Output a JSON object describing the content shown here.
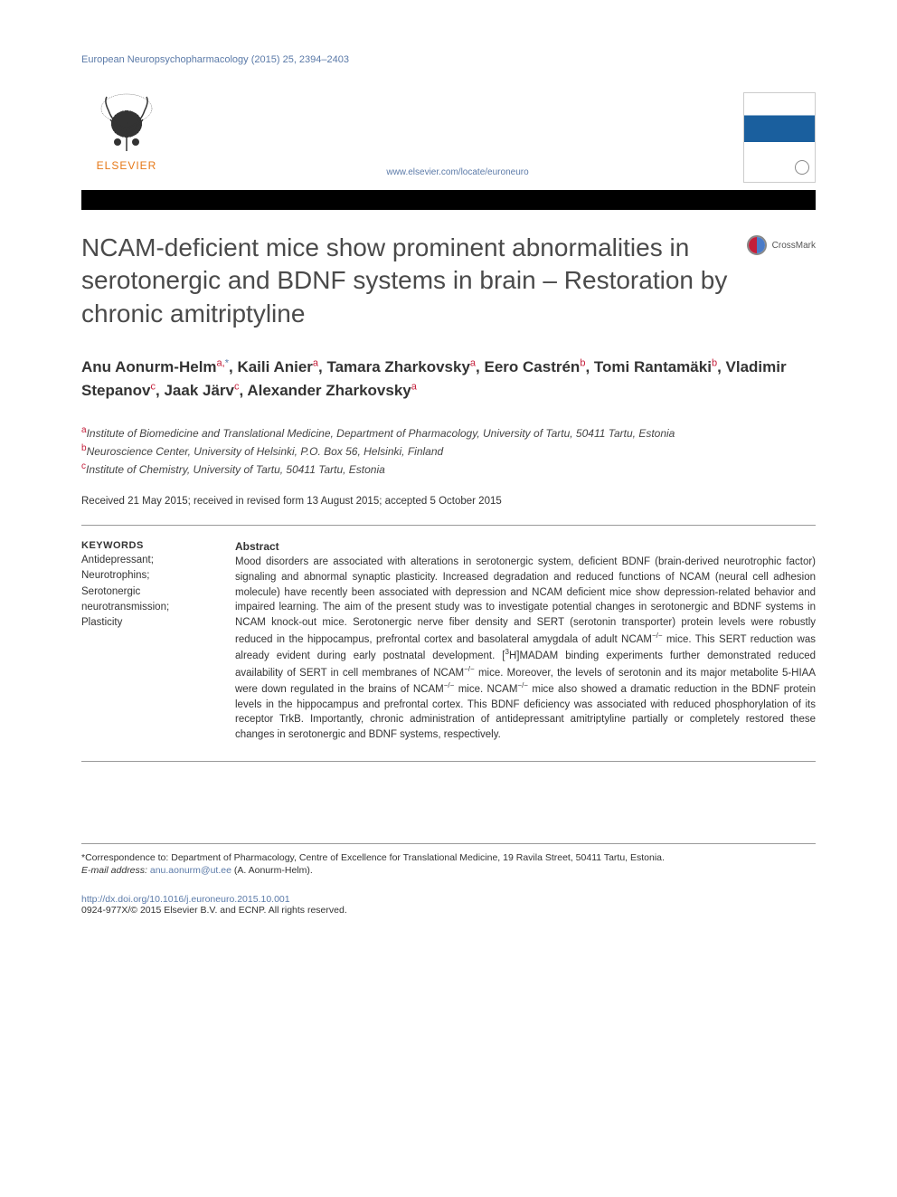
{
  "journal_ref": "European Neuropsychopharmacology (2015) 25, 2394–2403",
  "publisher_name": "ELSEVIER",
  "journal_url": "www.elsevier.com/locate/euroneuro",
  "crossmark_label": "CrossMark",
  "title": "NCAM-deficient mice show prominent abnormalities in serotonergic and BDNF systems in brain – Restoration by chronic amitriptyline",
  "authors_html": "Anu Aonurm-Helm<sup>a,</sup><sup class=\"star\">*</sup>, Kaili Anier<sup>a</sup>, Tamara Zharkovsky<sup>a</sup>, Eero Castrén<sup>b</sup>, Tomi Rantamäki<sup>b</sup>, Vladimir Stepanov<sup>c</sup>, Jaak Järv<sup>c</sup>, Alexander Zharkovsky<sup>a</sup>",
  "affiliations": [
    {
      "label": "a",
      "text": "Institute of Biomedicine and Translational Medicine, Department of Pharmacology, University of Tartu, 50411 Tartu, Estonia"
    },
    {
      "label": "b",
      "text": "Neuroscience Center, University of Helsinki, P.O. Box 56, Helsinki, Finland"
    },
    {
      "label": "c",
      "text": "Institute of Chemistry, University of Tartu, 50411 Tartu, Estonia"
    }
  ],
  "dates": "Received 21 May 2015; received in revised form 13 August 2015; accepted 5 October 2015",
  "keywords_heading": "KEYWORDS",
  "keywords": "Antidepressant;\nNeurotrophins;\nSerotonergic neurotransmission;\nPlasticity",
  "abstract_heading": "Abstract",
  "abstract_text": "Mood disorders are associated with alterations in serotonergic system, deficient BDNF (brain-derived neurotrophic factor) signaling and abnormal synaptic plasticity. Increased degradation and reduced functions of NCAM (neural cell adhesion molecule) have recently been associated with depression and NCAM deficient mice show depression-related behavior and impaired learning. The aim of the present study was to investigate potential changes in serotonergic and BDNF systems in NCAM knock-out mice. Serotonergic nerve fiber density and SERT (serotonin transporter) protein levels were robustly reduced in the hippocampus, prefrontal cortex and basolateral amygdala of adult NCAM⁻/⁻ mice. This SERT reduction was already evident during early postnatal development. [³H]MADAM binding experiments further demonstrated reduced availability of SERT in cell membranes of NCAM⁻/⁻ mice. Moreover, the levels of serotonin and its major metabolite 5-HIAA were down regulated in the brains of NCAM⁻/⁻ mice. NCAM⁻/⁻ mice also showed a dramatic reduction in the BDNF protein levels in the hippocampus and prefrontal cortex. This BDNF deficiency was associated with reduced phosphorylation of its receptor TrkB. Importantly, chronic administration of antidepressant amitriptyline partially or completely restored these changes in serotonergic and BDNF systems, respectively.",
  "correspondence_label": "*Correspondence to:",
  "correspondence_text": "Department of Pharmacology, Centre of Excellence for Translational Medicine, 19 Ravila Street, 50411 Tartu, Estonia.",
  "email_label": "E-mail address:",
  "email": "anu.aonurm@ut.ee",
  "email_author": "(A. Aonurm-Helm).",
  "doi": "http://dx.doi.org/10.1016/j.euroneuro.2015.10.001",
  "copyright": "0924-977X/© 2015 Elsevier B.V. and ECNP. All rights reserved.",
  "colors": {
    "link": "#5b7aa8",
    "publisher_orange": "#e67817",
    "sup_red": "#c41e3a",
    "black_bar": "#000000",
    "text": "#333333"
  },
  "typography": {
    "title_fontsize": 28,
    "authors_fontsize": 17,
    "body_fontsize": 11.5,
    "small_fontsize": 10.5
  }
}
